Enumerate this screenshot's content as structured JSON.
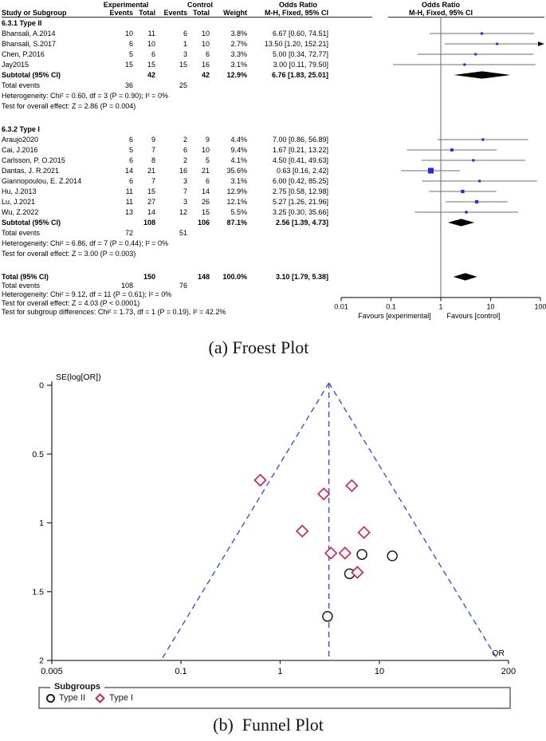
{
  "labels": {
    "caption_a": "(a) Froest Plot",
    "caption_b": "(b)  Funnel Plot",
    "legend_title": "Subgroups",
    "legend_type2": "Type II",
    "legend_type1": "Type I",
    "forest_header": {
      "experimental": "Experimental",
      "control": "Control",
      "odds_ratio": "Odds Ratio",
      "mh": "M-H, Fixed, 95% CI",
      "study": "Study or Subgroup",
      "events": "Events",
      "total": "Total",
      "weight": "Weight"
    }
  },
  "colors": {
    "square": "#2626e6",
    "ci_line": "#6e6e6e",
    "null_line": "#8c8c8c",
    "diamond": "#000000",
    "axis": "#333333",
    "dash_blue": "#3a53c5",
    "type1_red": "#c52a50",
    "type2_black": "#1f1f1f"
  },
  "chart_data": [
    {
      "type": "table",
      "title": "Forest plot — Odds Ratio, M-H, Fixed, 95% CI",
      "columns": [
        "Study or Subgroup",
        "Experimental Events",
        "Experimental Total",
        "Control Events",
        "Control Total",
        "Weight",
        "Odds Ratio M-H, Fixed, 95% CI"
      ],
      "x_axis": {
        "scale": "log",
        "ticks": [
          "0.01",
          "0.1",
          "1",
          "10",
          "100"
        ],
        "values": [
          0.01,
          0.1,
          1,
          10,
          100
        ],
        "favours_left": "Favours [experimental]",
        "favours_right": "Favours [control]"
      },
      "sections": [
        {
          "title": "6.3.1 Type II",
          "rows": [
            {
              "study": "Bhansali, A.2014",
              "ee": "10",
              "et": "11",
              "ce": "6",
              "ct": "10",
              "weight": "3.8%",
              "ci": "6.67 [0.60, 74.51]",
              "or": 6.67,
              "lo": 0.6,
              "hi": 74.51,
              "w": 3.8
            },
            {
              "study": "Bhansali, S.2017",
              "ee": "6",
              "et": "10",
              "ce": "1",
              "ct": "10",
              "weight": "2.7%",
              "ci": "13.50 [1.20, 152.21]",
              "or": 13.5,
              "lo": 1.2,
              "hi": 152.21,
              "w": 2.7
            },
            {
              "study": "Chen, P.2016",
              "ee": "5",
              "et": "6",
              "ce": "3",
              "ct": "6",
              "weight": "3.3%",
              "ci": "5.00 [0.34, 72.77]",
              "or": 5.0,
              "lo": 0.34,
              "hi": 72.77,
              "w": 3.3
            },
            {
              "study": "Jay2015",
              "ee": "15",
              "et": "15",
              "ce": "15",
              "ct": "16",
              "weight": "3.1%",
              "ci": "3.00 [0.11, 79.50]",
              "or": 3.0,
              "lo": 0.11,
              "hi": 79.5,
              "w": 3.1
            }
          ],
          "subtotal": {
            "study": "Subtotal (95% CI)",
            "et": "42",
            "ct": "42",
            "weight": "12.9%",
            "ci": "6.76 [1.83, 25.01]",
            "or": 6.76,
            "lo": 1.83,
            "hi": 25.01
          },
          "total_events": {
            "label": "Total events",
            "e": "36",
            "c": "25"
          },
          "notes": [
            "Heterogeneity: Chi² = 0.60, df = 3 (P = 0.90); I² = 0%",
            "Test for overall effect: Z = 2.86 (P = 0.004)"
          ]
        },
        {
          "title": "6.3.2 Type I",
          "rows": [
            {
              "study": "Araujo2020",
              "ee": "6",
              "et": "9",
              "ce": "2",
              "ct": "9",
              "weight": "4.4%",
              "ci": "7.00 [0.86, 56.89]",
              "or": 7.0,
              "lo": 0.86,
              "hi": 56.89,
              "w": 4.4
            },
            {
              "study": "Cai, J.2016",
              "ee": "5",
              "et": "7",
              "ce": "6",
              "ct": "10",
              "weight": "9.4%",
              "ci": "1.67 [0.21, 13.22]",
              "or": 1.67,
              "lo": 0.21,
              "hi": 13.22,
              "w": 9.4
            },
            {
              "study": "Carlsson, P. O.2015",
              "ee": "6",
              "et": "8",
              "ce": "2",
              "ct": "5",
              "weight": "4.1%",
              "ci": "4.50 [0.41, 49.63]",
              "or": 4.5,
              "lo": 0.41,
              "hi": 49.63,
              "w": 4.1
            },
            {
              "study": "Dantas, J. R.2021",
              "ee": "14",
              "et": "21",
              "ce": "16",
              "ct": "21",
              "weight": "35.6%",
              "ci": "0.63 [0.16, 2.42]",
              "or": 0.63,
              "lo": 0.16,
              "hi": 2.42,
              "w": 35.6
            },
            {
              "study": "Giannopoulou, E. Z.2014",
              "ee": "6",
              "et": "7",
              "ce": "3",
              "ct": "6",
              "weight": "3.1%",
              "ci": "6.00 [0.42, 85.25]",
              "or": 6.0,
              "lo": 0.42,
              "hi": 85.25,
              "w": 3.1
            },
            {
              "study": "Hu, J.2013",
              "ee": "11",
              "et": "15",
              "ce": "7",
              "ct": "14",
              "weight": "12.9%",
              "ci": "2.75 [0.58, 12.98]",
              "or": 2.75,
              "lo": 0.58,
              "hi": 12.98,
              "w": 12.9
            },
            {
              "study": "Lu, J.2021",
              "ee": "11",
              "et": "27",
              "ce": "3",
              "ct": "26",
              "weight": "12.1%",
              "ci": "5.27 [1.26, 21.96]",
              "or": 5.27,
              "lo": 1.26,
              "hi": 21.96,
              "w": 12.1
            },
            {
              "study": "Wu, Z.2022",
              "ee": "13",
              "et": "14",
              "ce": "12",
              "ct": "15",
              "weight": "5.5%",
              "ci": "3.25 [0.30, 35.66]",
              "or": 3.25,
              "lo": 0.3,
              "hi": 35.66,
              "w": 5.5
            }
          ],
          "subtotal": {
            "study": "Subtotal (95% CI)",
            "et": "108",
            "ct": "106",
            "weight": "87.1%",
            "ci": "2.56 [1.39, 4.73]",
            "or": 2.56,
            "lo": 1.39,
            "hi": 4.73
          },
          "total_events": {
            "label": "Total events",
            "e": "72",
            "c": "51"
          },
          "notes": [
            "Heterogeneity: Chi² = 6.86, df = 7 (P = 0.44); I² = 0%",
            "Test for overall effect: Z = 3.00 (P = 0.003)"
          ]
        }
      ],
      "total": {
        "study": "Total (95% CI)",
        "et": "150",
        "ct": "148",
        "weight": "100.0%",
        "ci": "3.10 [1.79, 5.38]",
        "or": 3.1,
        "lo": 1.79,
        "hi": 5.38
      },
      "total_events": {
        "label": "Total events",
        "e": "108",
        "c": "76"
      },
      "notes": [
        "Heterogeneity: Chi² = 9.12, df = 11 (P = 0.61); I² = 0%",
        "Test for overall effect: Z = 4.03 (P < 0.0001)",
        "Test for subgroup differences: Chi² = 1.73, df = 1 (P = 0.19), I² = 42.2%"
      ]
    },
    {
      "type": "scatter",
      "title": "Funnel plot",
      "xlabel": "OR",
      "ylabel": "SE(log[OR])",
      "x_scale": "log",
      "y_reversed": true,
      "x_ticks": {
        "labels": [
          "0.005",
          "0.1",
          "1",
          "10",
          "200"
        ],
        "values": [
          0.005,
          0.1,
          1,
          10,
          200
        ]
      },
      "y_ticks": {
        "labels": [
          "0",
          "0.5",
          "1",
          "1.5",
          "2"
        ],
        "values": [
          0,
          0.5,
          1,
          1.5,
          2
        ]
      },
      "center_or": 3.1,
      "se_max": 2,
      "series": [
        {
          "name": "Type II",
          "marker": "circle",
          "points": [
            {
              "study": "Bhansali, A.2014",
              "or": 6.67,
              "se": 1.23
            },
            {
              "study": "Bhansali, S.2017",
              "or": 13.5,
              "se": 1.24
            },
            {
              "study": "Chen, P.2016",
              "or": 5.0,
              "se": 1.37
            },
            {
              "study": "Jay2015",
              "or": 3.0,
              "se": 1.68
            }
          ]
        },
        {
          "name": "Type I",
          "marker": "diamond",
          "points": [
            {
              "study": "Dantas, J. R.2021",
              "or": 0.63,
              "se": 0.69
            },
            {
              "study": "Hu, J.2013",
              "or": 2.75,
              "se": 0.79
            },
            {
              "study": "Lu, J.2021",
              "or": 5.27,
              "se": 0.73
            },
            {
              "study": "Cai, J.2016",
              "or": 1.67,
              "se": 1.06
            },
            {
              "study": "Araujo2020",
              "or": 7.0,
              "se": 1.07
            },
            {
              "study": "Wu, Z.2022",
              "or": 3.25,
              "se": 1.22
            },
            {
              "study": "Carlsson, P. O.2015",
              "or": 4.5,
              "se": 1.22
            },
            {
              "study": "Giannopoulou, E. Z.2014",
              "or": 6.0,
              "se": 1.36
            }
          ]
        }
      ]
    }
  ]
}
